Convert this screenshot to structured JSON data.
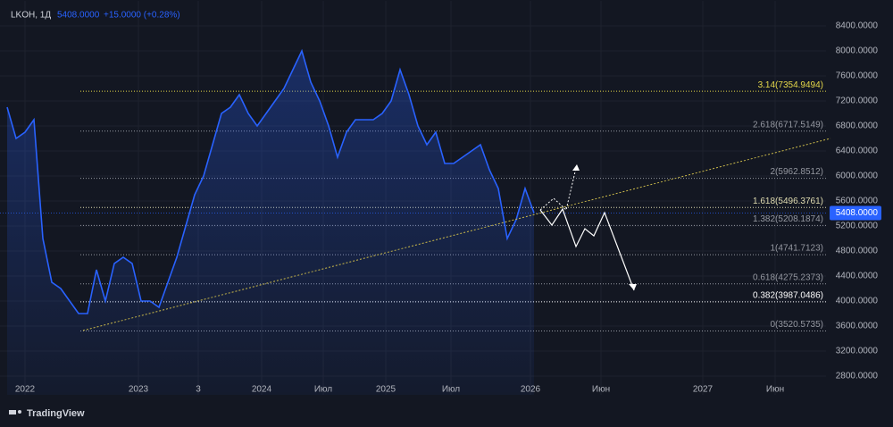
{
  "header": {
    "symbol": "LKOH, 1Д",
    "price": "5408.0000",
    "change": "+15.0000 (+0.28%)"
  },
  "footer": {
    "brand": "TradingView"
  },
  "chart_data": {
    "type": "line",
    "color": "#2962ff",
    "values": [
      7100,
      6600,
      6700,
      6900,
      5000,
      4300,
      4200,
      4000,
      3800,
      3800,
      4500,
      4000,
      4600,
      4700,
      4600,
      4000,
      4000,
      3900,
      4300,
      4700,
      5200,
      5700,
      6000,
      6500,
      7000,
      7100,
      7300,
      7000,
      6800,
      7000,
      7200,
      7400,
      7700,
      8000,
      7500,
      7200,
      6800,
      6300,
      6700,
      6900,
      6900,
      6900,
      7000,
      7200,
      7700,
      7300,
      6800,
      6500,
      6700,
      6200,
      6200,
      6300,
      6400,
      6500,
      6100,
      5800,
      5000,
      5300,
      5800,
      5408
    ],
    "last_price_label": "5408.0000",
    "xlim": [
      -0.8,
      91.7
    ],
    "xticks": [
      {
        "value": 2,
        "label": "2022"
      },
      {
        "value": 14.7,
        "label": "2023"
      },
      {
        "value": 21.4,
        "label": "3"
      },
      {
        "value": 28.5,
        "label": "2024"
      },
      {
        "value": 35.4,
        "label": "Июл"
      },
      {
        "value": 42.4,
        "label": "2025"
      },
      {
        "value": 49.7,
        "label": "Июл"
      },
      {
        "value": 58.6,
        "label": "2026"
      },
      {
        "value": 66.5,
        "label": "Июн"
      },
      {
        "value": 77.9,
        "label": "2027"
      },
      {
        "value": 86,
        "label": "Июн"
      }
    ],
    "ylim": [
      2500,
      8800
    ],
    "yticks": [
      {
        "value": 2800,
        "label": "2800.0000"
      },
      {
        "value": 3200,
        "label": "3200.0000"
      },
      {
        "value": 3600,
        "label": "3600.0000"
      },
      {
        "value": 4000,
        "label": "4000.0000"
      },
      {
        "value": 4400,
        "label": "4400.0000"
      },
      {
        "value": 4800,
        "label": "4800.0000"
      },
      {
        "value": 5200,
        "label": "5200.0000"
      },
      {
        "value": 5600,
        "label": "5600.0000"
      },
      {
        "value": 6000,
        "label": "6000.0000"
      },
      {
        "value": 6400,
        "label": "6400.0000"
      },
      {
        "value": 6800,
        "label": "6800.0000"
      },
      {
        "value": 7200,
        "label": "7200.0000"
      },
      {
        "value": 7600,
        "label": "7600.0000"
      },
      {
        "value": 8000,
        "label": "8000.0000"
      },
      {
        "value": 8400,
        "label": "8400.0000"
      }
    ],
    "grid": true,
    "fib_levels": [
      {
        "value": 7354.9494,
        "label": "3.14(7354.9494)",
        "color": "#e6d84a"
      },
      {
        "value": 6717.5149,
        "label": "2.618(6717.5149)",
        "color": "#9598a1"
      },
      {
        "value": 5962.8512,
        "label": "2(5962.8512)",
        "color": "#9598a1"
      },
      {
        "value": 5496.3761,
        "label": "1.618(5496.3761)",
        "color": "#e0dcb0"
      },
      {
        "value": 5208.1874,
        "label": "1.382(5208.1874)",
        "color": "#9598a1"
      },
      {
        "value": 4741.7123,
        "label": "1(4741.7123)",
        "color": "#9598a1"
      },
      {
        "value": 4275.2373,
        "label": "0.618(4275.2373)",
        "color": "#9598a1"
      },
      {
        "value": 3987.0486,
        "label": "0.382(3987.0486)",
        "color": "#ffffff"
      },
      {
        "value": 3520.5735,
        "label": "0(3520.5735)",
        "color": "#9598a1"
      }
    ]
  }
}
